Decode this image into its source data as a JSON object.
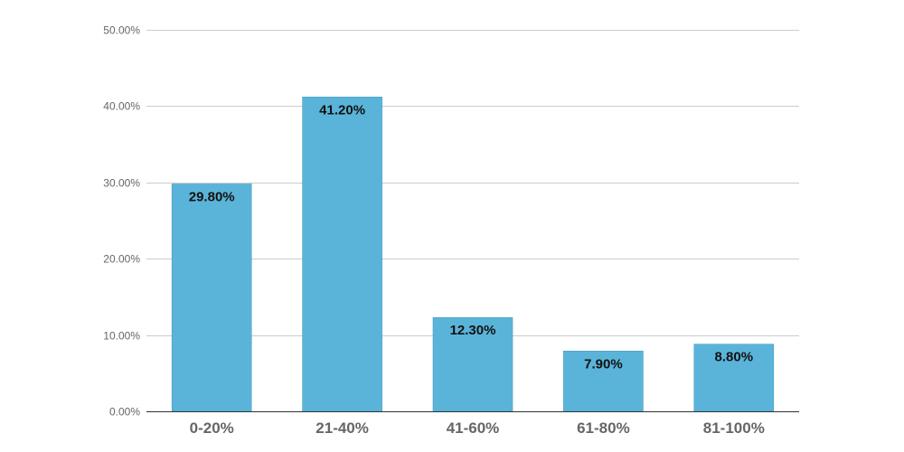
{
  "chart_data": {
    "type": "bar",
    "title": "",
    "xlabel": "",
    "ylabel": "",
    "categories": [
      "0-20%",
      "21-40%",
      "41-60%",
      "61-80%",
      "81-100%"
    ],
    "values": [
      29.8,
      41.2,
      12.3,
      7.9,
      8.8
    ],
    "data_labels": [
      "29.80%",
      "41.20%",
      "12.30%",
      "7.90%",
      "8.80%"
    ],
    "ylim": [
      0,
      50
    ],
    "y_ticks": [
      0,
      10,
      20,
      30,
      40,
      50
    ],
    "y_tick_labels": [
      "0.00%",
      "10.00%",
      "20.00%",
      "30.00%",
      "40.00%",
      "50.00%"
    ],
    "grid": true,
    "legend": "none",
    "colors": {
      "bar": "#5ab4d9",
      "bar_edge": "#4a9cc0",
      "grid": "#cccccc",
      "axis": "#333333",
      "tick_text": "#666666",
      "label_text": "#111111"
    }
  }
}
